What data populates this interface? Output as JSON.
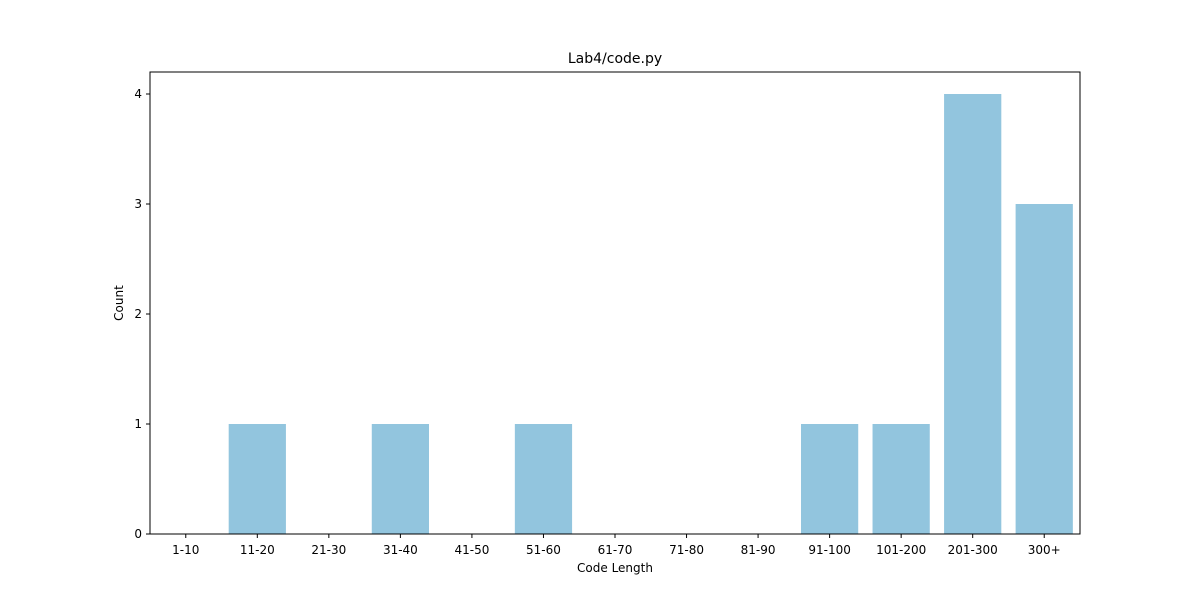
{
  "chart_data": {
    "type": "bar",
    "title": "Lab4/code.py",
    "xlabel": "Code Length",
    "ylabel": "Count",
    "categories": [
      "1-10",
      "11-20",
      "21-30",
      "31-40",
      "41-50",
      "51-60",
      "61-70",
      "71-80",
      "81-90",
      "91-100",
      "101-200",
      "201-300",
      "300+"
    ],
    "values": [
      0,
      1,
      0,
      1,
      0,
      1,
      0,
      0,
      0,
      1,
      1,
      4,
      3
    ],
    "ylim": [
      0,
      4.2
    ],
    "yticks": [
      0,
      1,
      2,
      3,
      4
    ],
    "grid": false,
    "legend": "none",
    "bar_color": "#92c5de"
  }
}
